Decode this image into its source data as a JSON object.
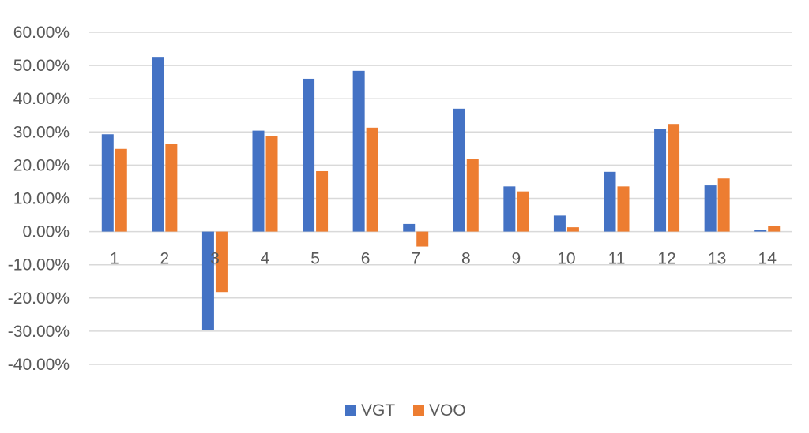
{
  "chart_data": {
    "type": "bar",
    "categories": [
      "1",
      "2",
      "3",
      "4",
      "5",
      "6",
      "7",
      "8",
      "9",
      "10",
      "11",
      "12",
      "13",
      "14"
    ],
    "series": [
      {
        "name": "VGT",
        "color": "#4472C4",
        "values": [
          29.3,
          52.6,
          -29.6,
          30.4,
          46.0,
          48.4,
          2.3,
          37.0,
          13.6,
          4.8,
          18.0,
          31.0,
          13.9,
          0.4
        ]
      },
      {
        "name": "VOO",
        "color": "#ED7D31",
        "values": [
          24.9,
          26.3,
          -18.2,
          28.7,
          18.2,
          31.3,
          -4.5,
          21.8,
          12.1,
          1.3,
          13.6,
          32.4,
          16.0,
          1.8
        ]
      }
    ],
    "yticks": [
      "60.00%",
      "50.00%",
      "40.00%",
      "30.00%",
      "20.00%",
      "10.00%",
      "0.00%",
      "-10.00%",
      "-20.00%",
      "-30.00%",
      "-40.00%"
    ],
    "ylim": [
      -40,
      60
    ],
    "grid": true,
    "legend": "bottom",
    "gridline_color": "#D9D9D9"
  }
}
